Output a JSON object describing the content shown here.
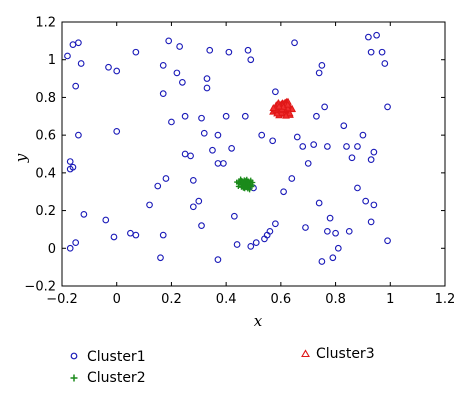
{
  "chart_data": {
    "type": "scatter",
    "xlabel": "x",
    "ylabel": "y",
    "xlim": [
      -0.2,
      1.2
    ],
    "ylim": [
      -0.2,
      1.2
    ],
    "xticks": [
      "−0.2",
      "0",
      "0.2",
      "0.4",
      "0.6",
      "0.8",
      "1",
      "1.2"
    ],
    "yticks": [
      "−0.2",
      "0",
      "0.2",
      "0.4",
      "0.6",
      "0.8",
      "1",
      "1.2"
    ],
    "grid": false,
    "colors": {
      "cluster1": "#1a1ab8",
      "cluster2": "#1a8a1a",
      "cluster3": "#e01818"
    },
    "series": [
      {
        "name": "Cluster1",
        "marker": "circle",
        "points": [
          [
            -0.18,
            1.02
          ],
          [
            -0.16,
            1.08
          ],
          [
            -0.14,
            1.09
          ],
          [
            -0.13,
            0.98
          ],
          [
            -0.15,
            0.86
          ],
          [
            -0.14,
            0.6
          ],
          [
            -0.17,
            0.46
          ],
          [
            -0.16,
            0.43
          ],
          [
            -0.17,
            0.42
          ],
          [
            -0.12,
            0.18
          ],
          [
            -0.15,
            0.03
          ],
          [
            -0.17,
            0.0
          ],
          [
            -0.03,
            0.96
          ],
          [
            0.0,
            0.94
          ],
          [
            0.0,
            0.62
          ],
          [
            -0.04,
            0.15
          ],
          [
            -0.01,
            0.06
          ],
          [
            0.05,
            0.08
          ],
          [
            0.07,
            0.07
          ],
          [
            0.07,
            1.04
          ],
          [
            0.15,
            0.33
          ],
          [
            0.12,
            0.23
          ],
          [
            0.18,
            0.37
          ],
          [
            0.17,
            0.07
          ],
          [
            0.17,
            0.97
          ],
          [
            0.17,
            0.82
          ],
          [
            0.2,
            0.67
          ],
          [
            0.19,
            1.1
          ],
          [
            0.22,
            0.93
          ],
          [
            0.23,
            1.07
          ],
          [
            0.24,
            0.88
          ],
          [
            0.25,
            0.7
          ],
          [
            0.25,
            0.5
          ],
          [
            0.27,
            0.49
          ],
          [
            0.28,
            0.36
          ],
          [
            0.28,
            0.22
          ],
          [
            0.3,
            0.25
          ],
          [
            0.31,
            0.12
          ],
          [
            0.31,
            0.69
          ],
          [
            0.32,
            0.61
          ],
          [
            0.33,
            0.9
          ],
          [
            0.33,
            0.85
          ],
          [
            0.34,
            1.05
          ],
          [
            0.35,
            0.52
          ],
          [
            0.37,
            0.45
          ],
          [
            0.37,
            0.6
          ],
          [
            0.39,
            0.45
          ],
          [
            0.4,
            0.7
          ],
          [
            0.41,
            1.04
          ],
          [
            0.42,
            0.53
          ],
          [
            0.43,
            0.17
          ],
          [
            0.47,
            0.7
          ],
          [
            0.48,
            1.05
          ],
          [
            0.49,
            1.0
          ],
          [
            0.49,
            0.01
          ],
          [
            0.51,
            0.03
          ],
          [
            0.53,
            0.6
          ],
          [
            0.54,
            0.05
          ],
          [
            0.55,
            0.07
          ],
          [
            0.56,
            0.09
          ],
          [
            0.57,
            0.57
          ],
          [
            0.58,
            0.83
          ],
          [
            0.6,
            0.75
          ],
          [
            0.64,
            0.37
          ],
          [
            0.65,
            1.09
          ],
          [
            0.66,
            0.59
          ],
          [
            0.68,
            0.54
          ],
          [
            0.69,
            0.11
          ],
          [
            0.7,
            0.45
          ],
          [
            0.72,
            0.55
          ],
          [
            0.73,
            0.7
          ],
          [
            0.74,
            0.93
          ],
          [
            0.75,
            0.97
          ],
          [
            0.76,
            0.75
          ],
          [
            0.77,
            0.54
          ],
          [
            0.77,
            0.09
          ],
          [
            0.78,
            0.16
          ],
          [
            0.8,
            0.08
          ],
          [
            0.81,
            0.0
          ],
          [
            0.83,
            0.65
          ],
          [
            0.84,
            0.54
          ],
          [
            0.86,
            0.48
          ],
          [
            0.88,
            0.32
          ],
          [
            0.88,
            0.54
          ],
          [
            0.9,
            0.6
          ],
          [
            0.91,
            0.25
          ],
          [
            0.92,
            1.12
          ],
          [
            0.93,
            1.04
          ],
          [
            0.93,
            0.47
          ],
          [
            0.94,
            0.23
          ],
          [
            0.95,
            1.13
          ],
          [
            0.97,
            1.04
          ],
          [
            0.98,
            0.98
          ],
          [
            0.99,
            0.75
          ],
          [
            0.99,
            0.04
          ],
          [
            0.75,
            -0.07
          ],
          [
            0.79,
            -0.05
          ],
          [
            0.37,
            -0.06
          ],
          [
            0.16,
            -0.05
          ],
          [
            0.44,
            0.02
          ],
          [
            0.93,
            0.14
          ],
          [
            0.85,
            0.09
          ],
          [
            0.58,
            0.13
          ],
          [
            0.61,
            0.3
          ],
          [
            0.74,
            0.24
          ],
          [
            0.94,
            0.51
          ],
          [
            0.5,
            0.32
          ]
        ]
      },
      {
        "name": "Cluster2",
        "marker": "plus",
        "center": [
          0.47,
          0.34
        ],
        "spread": 0.012,
        "count": 100
      },
      {
        "name": "Cluster3",
        "marker": "triangle",
        "center": [
          0.61,
          0.74
        ],
        "spread": 0.015,
        "count": 100
      }
    ],
    "legend": {
      "position": "below",
      "entries": [
        "Cluster1",
        "Cluster2",
        "Cluster3"
      ]
    }
  }
}
